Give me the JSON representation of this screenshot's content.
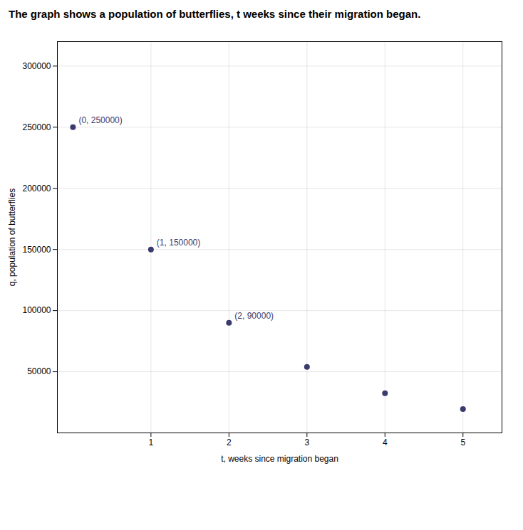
{
  "chart_data": {
    "type": "scatter",
    "title": "The graph shows a population of butterflies, t weeks since their migration began.",
    "xlabel": "t, weeks since migration began",
    "ylabel": "q, population of butterflies",
    "x": [
      0,
      1,
      2,
      3,
      4,
      5
    ],
    "values": [
      250000,
      150000,
      90000,
      54000,
      32400,
      19440
    ],
    "color": "#3a3a6e",
    "xlim": [
      -0.2,
      5.5
    ],
    "ylim": [
      0,
      320000
    ],
    "xticks": [
      1,
      2,
      3,
      4,
      5
    ],
    "yticks": [
      50000,
      100000,
      150000,
      200000,
      250000,
      300000
    ],
    "grid": true,
    "annotations": [
      {
        "x": 0,
        "y": 250000,
        "label": "(0, 250000)"
      },
      {
        "x": 1,
        "y": 150000,
        "label": "(1, 150000)"
      },
      {
        "x": 2,
        "y": 90000,
        "label": "(2, 90000)"
      }
    ]
  }
}
